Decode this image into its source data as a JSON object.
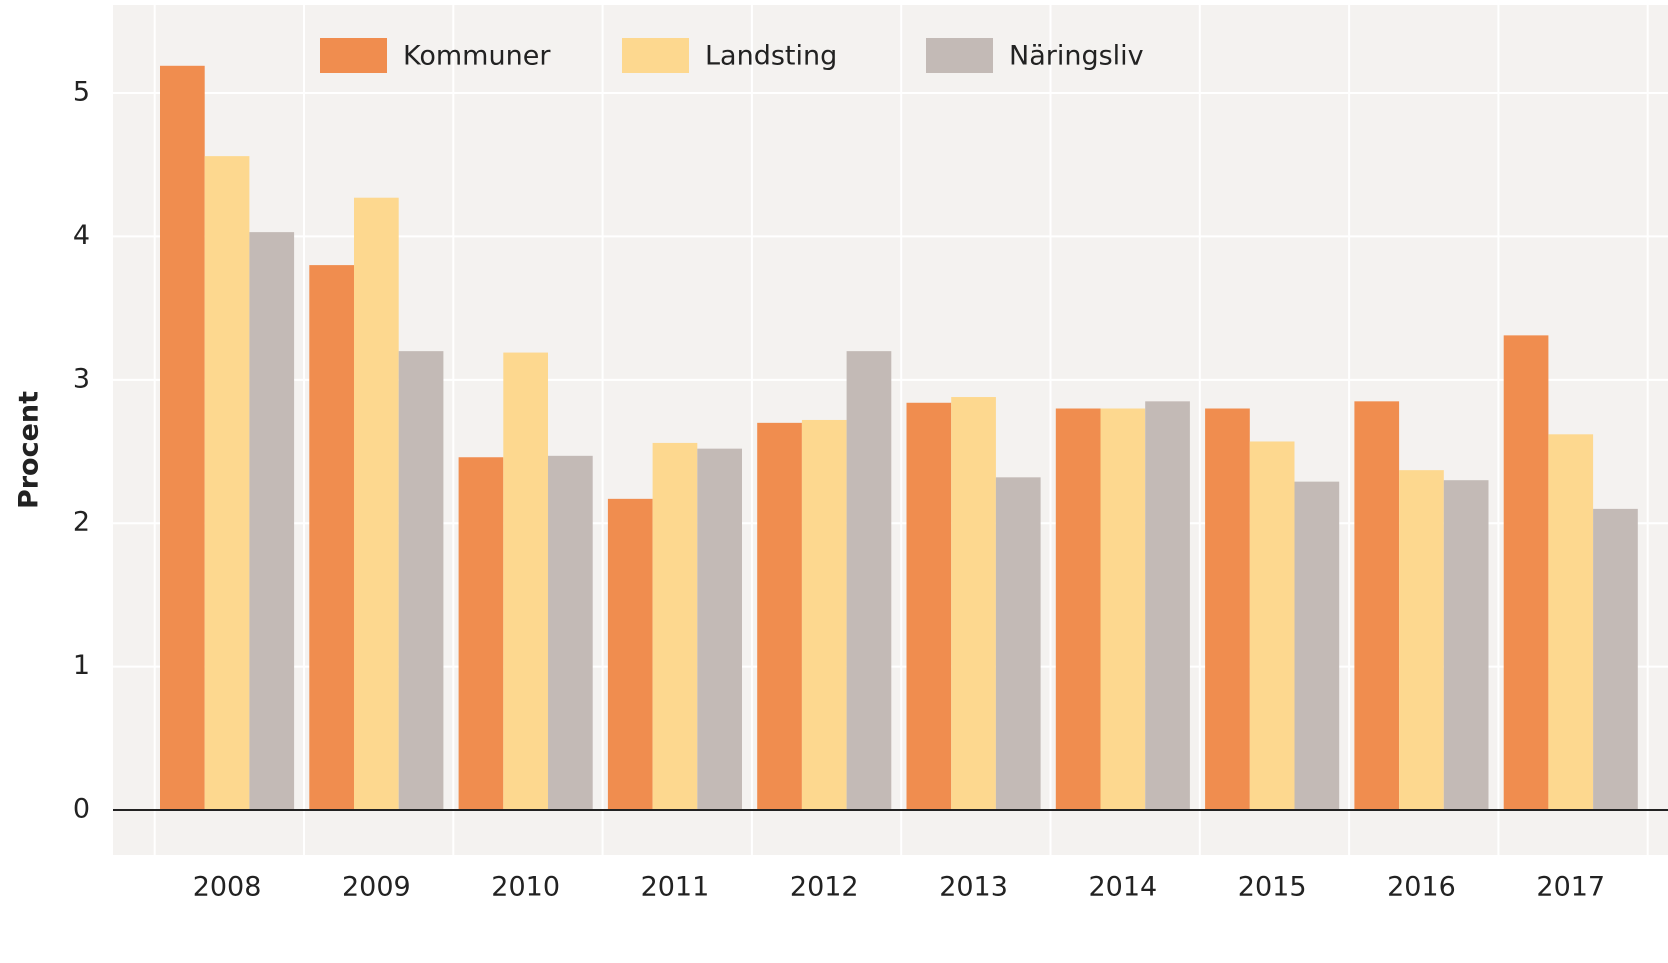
{
  "chart_data": {
    "type": "bar",
    "y_label": "Procent",
    "categories": [
      "2008",
      "2009",
      "2010",
      "2011",
      "2012",
      "2013",
      "2014",
      "2015",
      "2016",
      "2017"
    ],
    "series": [
      {
        "name": "Kommuner",
        "color": "#f08d4f",
        "values": [
          5.19,
          3.8,
          2.46,
          2.17,
          2.7,
          2.84,
          2.8,
          2.8,
          2.85,
          3.31
        ]
      },
      {
        "name": "Landsting",
        "color": "#fdd88f",
        "values": [
          4.56,
          4.27,
          3.19,
          2.56,
          2.72,
          2.88,
          2.8,
          2.57,
          2.37,
          2.62
        ]
      },
      {
        "name": "Näringsliv",
        "color": "#c3bab6",
        "values": [
          4.03,
          3.2,
          2.47,
          2.52,
          3.2,
          2.32,
          2.85,
          2.29,
          2.3,
          2.1
        ]
      }
    ],
    "ylim": [
      0,
      5.6
    ],
    "yticks": [
      0,
      1,
      2,
      3,
      4,
      5
    ],
    "grid": true,
    "legend": "top"
  }
}
